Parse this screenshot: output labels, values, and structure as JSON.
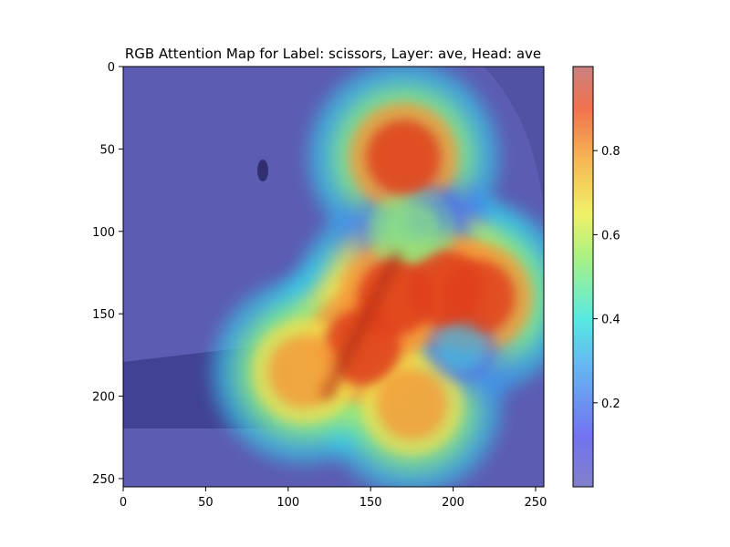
{
  "chart_data": {
    "type": "heatmap",
    "title": "RGB Attention Map for Label: scissors, Layer: ave, Head: ave",
    "xlabel": "",
    "ylabel": "",
    "xlim": [
      0,
      255
    ],
    "ylim": [
      255,
      0
    ],
    "x_ticks": [
      0,
      50,
      100,
      150,
      200,
      250
    ],
    "y_ticks": [
      0,
      50,
      100,
      150,
      200,
      250
    ],
    "grid": false,
    "colormap": "jet",
    "colorbar": {
      "range": [
        0.0,
        1.0
      ],
      "ticks": [
        0.2,
        0.4,
        0.6,
        0.8
      ]
    },
    "background_image": "grey photo of a hand holding scissors",
    "attention_regions": [
      {
        "x": 170,
        "y": 55,
        "intensity": 0.9
      },
      {
        "x": 165,
        "y": 140,
        "intensity": 0.95
      },
      {
        "x": 195,
        "y": 135,
        "intensity": 0.95
      },
      {
        "x": 215,
        "y": 140,
        "intensity": 0.9
      },
      {
        "x": 145,
        "y": 170,
        "intensity": 0.95
      },
      {
        "x": 110,
        "y": 185,
        "intensity": 0.85
      },
      {
        "x": 175,
        "y": 205,
        "intensity": 0.8
      },
      {
        "x": 205,
        "y": 170,
        "intensity": 0.3
      },
      {
        "x": 185,
        "y": 90,
        "intensity": 0.2
      },
      {
        "x": 175,
        "y": 100,
        "intensity": 0.55
      }
    ],
    "colors": {
      "low": "#5c5cb2",
      "mid_low": "#31cfe0",
      "mid": "#f2f051",
      "mid_high": "#f49a3b",
      "high": "#d83b20",
      "photo_dark": "#2a2a2a"
    }
  }
}
